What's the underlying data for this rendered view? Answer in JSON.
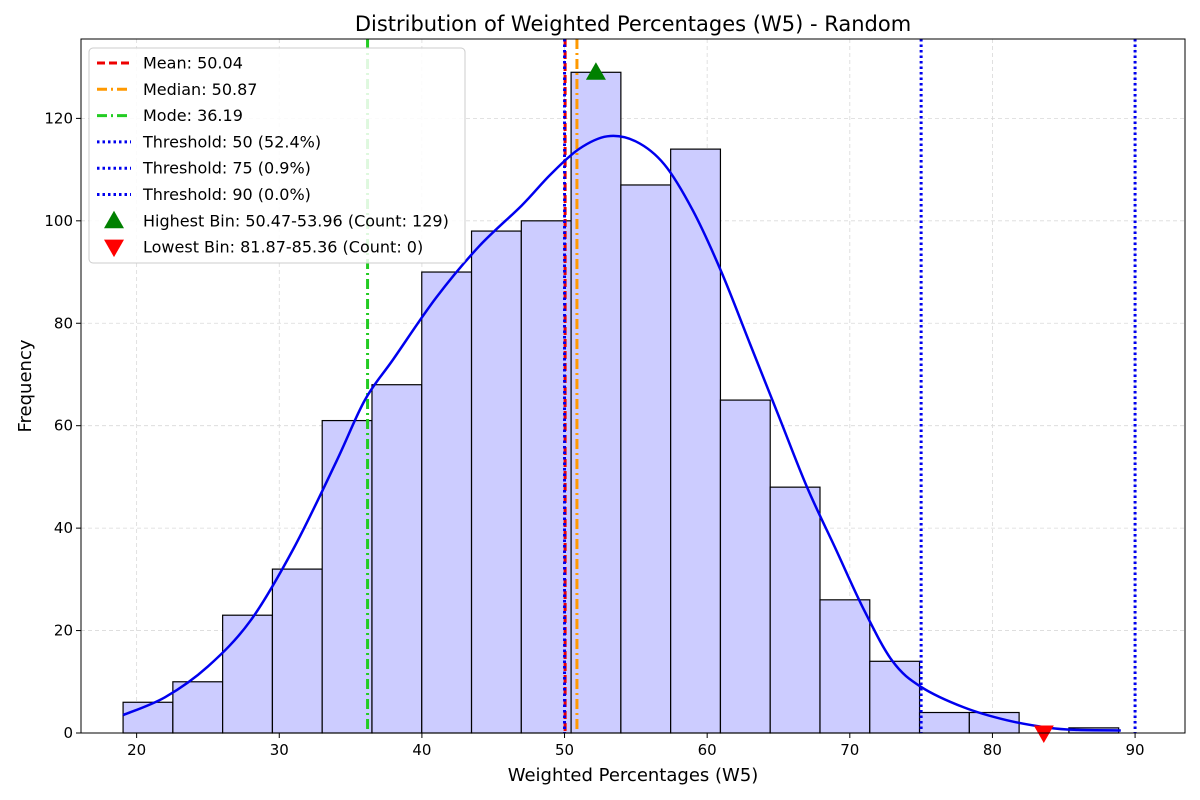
{
  "chart_data": {
    "type": "bar",
    "title": "Distribution of Weighted Percentages (W5) - Random",
    "xlabel": "Weighted Percentages (W5)",
    "ylabel": "Frequency",
    "xlim": [
      16.1,
      93.5
    ],
    "ylim": [
      0,
      135.5
    ],
    "xticks": [
      20,
      30,
      40,
      50,
      60,
      70,
      80,
      90
    ],
    "yticks": [
      0,
      20,
      40,
      60,
      80,
      100,
      120
    ],
    "grid": true,
    "legend_position": "top-left",
    "bin_start": 19.05,
    "bin_width": 3.49,
    "counts": [
      6,
      10,
      23,
      32,
      61,
      68,
      90,
      98,
      100,
      129,
      107,
      114,
      65,
      48,
      26,
      14,
      4,
      4,
      0,
      1
    ],
    "bar_color": "#ccccff",
    "kde": {
      "x": [
        19.05,
        22,
        25,
        28,
        31,
        34,
        36,
        38,
        41,
        44,
        47,
        49,
        51,
        53,
        55,
        57,
        59,
        61,
        63,
        65,
        67,
        69,
        71,
        73,
        75,
        78,
        81,
        84,
        86,
        89
      ],
      "y": [
        3.5,
        7,
        13,
        22,
        36,
        53,
        65,
        73,
        85,
        95,
        103,
        109,
        114,
        116.5,
        115.5,
        111,
        102,
        90,
        76,
        62,
        48,
        36,
        24,
        14,
        9,
        5,
        2.5,
        1,
        0.6,
        0.5
      ],
      "color": "#0000ee"
    },
    "lines": [
      {
        "label": "Mean: 50.04",
        "value": 50.04,
        "color": "#ee0000",
        "style": "dashed"
      },
      {
        "label": "Median: 50.87",
        "value": 50.87,
        "color": "#ff9900",
        "style": "dashdot"
      },
      {
        "label": "Mode: 36.19",
        "value": 36.19,
        "color": "#22cc22",
        "style": "dashdot"
      },
      {
        "label": "Threshold: 50 (52.4%)",
        "value": 50,
        "color": "#0000ee",
        "style": "dotted"
      },
      {
        "label": "Threshold: 75 (0.9%)",
        "value": 75,
        "color": "#0000ee",
        "style": "dotted"
      },
      {
        "label": "Threshold: 90 (0.0%)",
        "value": 90,
        "color": "#0000ee",
        "style": "dotted"
      }
    ],
    "markers": [
      {
        "label": "Highest Bin: 50.47-53.96 (Count: 129)",
        "x": 52.2,
        "y": 129,
        "shape": "triangle-up",
        "color": "#008000"
      },
      {
        "label": "Lowest Bin: 81.87-85.36 (Count: 0)",
        "x": 83.6,
        "y": 0,
        "shape": "triangle-down",
        "color": "#ff0000"
      }
    ]
  }
}
